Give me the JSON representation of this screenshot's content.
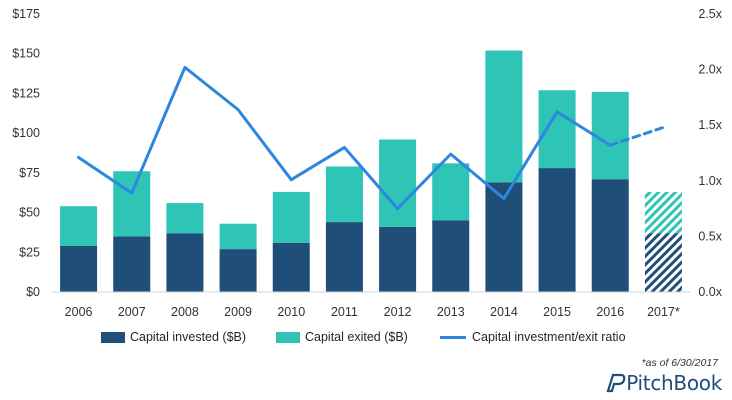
{
  "chart_data": {
    "type": "bar",
    "stacked": true,
    "categories": [
      "2006",
      "2007",
      "2008",
      "2009",
      "2010",
      "2011",
      "2012",
      "2013",
      "2014",
      "2015",
      "2016",
      "2017*"
    ],
    "series": [
      {
        "name": "Capital invested ($B)",
        "kind": "bar",
        "axis": "left",
        "color": "#1f4e79",
        "values": [
          29,
          35,
          37,
          27,
          31,
          44,
          41,
          45,
          69,
          78,
          71,
          37
        ]
      },
      {
        "name": "Capital exited ($B)",
        "kind": "bar",
        "axis": "left",
        "color": "#2ec4b6",
        "values": [
          25,
          41,
          19,
          16,
          32,
          35,
          55,
          36,
          83,
          49,
          55,
          26
        ]
      },
      {
        "name": "Capital investment/exit ratio",
        "kind": "line",
        "axis": "right",
        "color": "#2e86de",
        "values": [
          1.21,
          0.89,
          2.02,
          1.64,
          1.01,
          1.3,
          0.75,
          1.24,
          0.84,
          1.62,
          1.32,
          1.48
        ]
      }
    ],
    "estimated_categories": [
      "2017*"
    ],
    "y_left": {
      "ticks": [
        "$0",
        "$25",
        "$50",
        "$75",
        "$100",
        "$125",
        "$150",
        "$175"
      ],
      "ylim": [
        0,
        175
      ]
    },
    "y_right": {
      "ticks": [
        "0.0x",
        "0.5x",
        "1.0x",
        "1.5x",
        "2.0x",
        "2.5x"
      ],
      "ylim": [
        0,
        2.5
      ]
    },
    "grid": false,
    "legend_position": "bottom",
    "footnote": "*as of 6/30/2017"
  },
  "brand": {
    "name": "PitchBook"
  }
}
